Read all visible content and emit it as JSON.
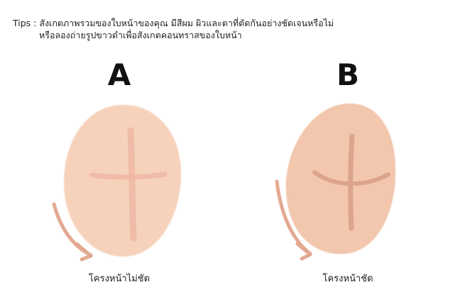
{
  "tips": {
    "line1": "Tips : สังเกตภาพรวมของใบหน้าของคุณ มีสีผม ผิวและตาที่ตัดกันอย่างชัดเจนหรือไม่",
    "line2": "หรือลองถ่ายรูปขาวดำเพื่อสังเกตคอนทราสของใบหน้า"
  },
  "panels": [
    {
      "letter": "A",
      "caption": "โครงหน้าไม่ชัด"
    },
    {
      "letter": "B",
      "caption": "โครงหน้าชัด"
    }
  ],
  "colors": {
    "face_a": "#f6d2bb",
    "face_b": "#f2c7ad",
    "cross_a": "#efb7a4",
    "cross_b": "#dca38d",
    "arrow": "#e3a990"
  }
}
